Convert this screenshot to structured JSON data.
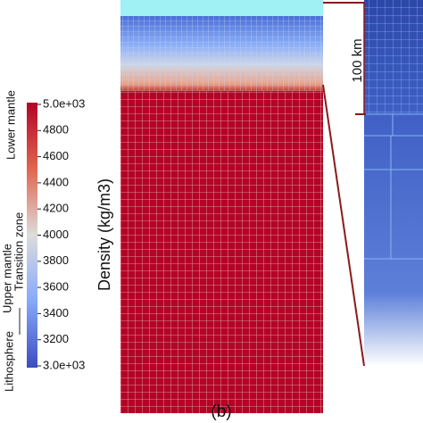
{
  "colorbar": {
    "title": "Density (kg/m3)",
    "ticks": [
      "5.0e+03",
      "4800",
      "4600",
      "4400",
      "4200",
      "4000",
      "3800",
      "3600",
      "3400",
      "3200",
      "3.0e+03"
    ]
  },
  "layers": {
    "lower": "Lower mantle",
    "transition": "Transition zone",
    "upper": "Upper mantle",
    "lithosphere": "Lithosphere"
  },
  "inset": {
    "scale": "100 km"
  },
  "panel": {
    "label": "(b)"
  }
}
